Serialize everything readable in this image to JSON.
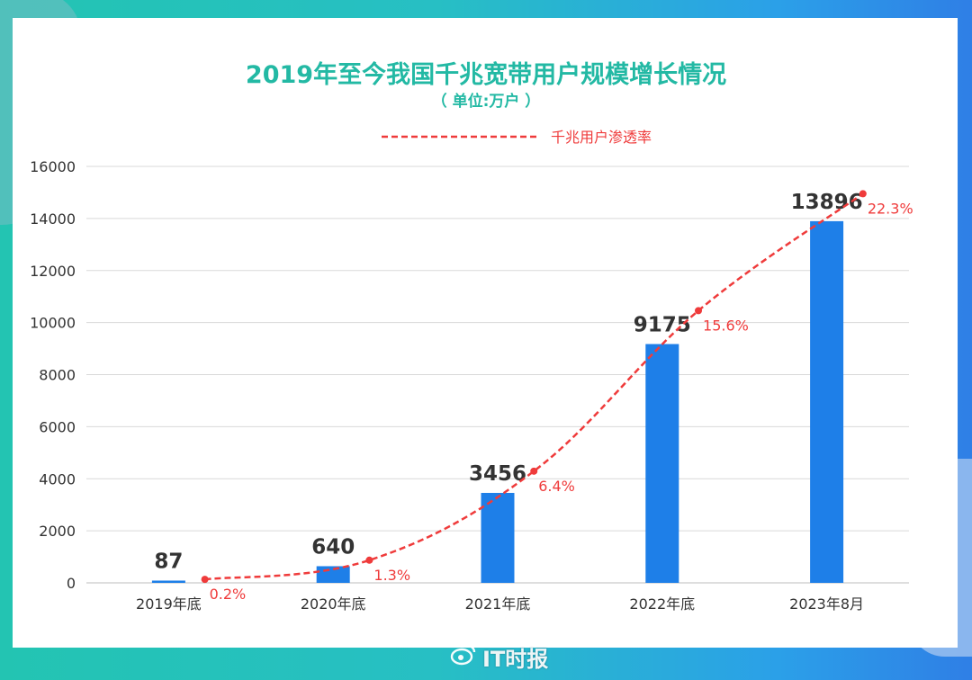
{
  "chart_data": {
    "type": "bar",
    "title": "2019年至今我国千兆宽带用户规模增长情况",
    "subtitle": "（ 单位:万户 ）",
    "categories": [
      "2019年底",
      "2020年底",
      "2021年底",
      "2022年底",
      "2023年8月"
    ],
    "series": [
      {
        "type": "bar",
        "values": [
          87,
          640,
          3456,
          9175,
          13896
        ],
        "value_labels": [
          "87",
          "640",
          "3456",
          "9175",
          "13896"
        ],
        "color": "#1e7fe8"
      },
      {
        "name": "千兆用户渗透率",
        "type": "line",
        "style": "dashed",
        "values": [
          0.2,
          1.3,
          6.4,
          15.6,
          22.3
        ],
        "value_labels": [
          "0.2%",
          "1.3%",
          "6.4%",
          "15.6%",
          "22.3%"
        ],
        "color": "#ef3b3b"
      }
    ],
    "yticks": [
      "0",
      "2000",
      "4000",
      "6000",
      "8000",
      "10000",
      "12000",
      "14000",
      "16000"
    ],
    "ylim": [
      0,
      16000
    ],
    "grid": true,
    "legend": "top"
  },
  "watermark": {
    "text": "IT时报"
  },
  "colors": {
    "accent": "#23b9a4",
    "bar": "#1e7fe8",
    "line": "#ef3b3b"
  }
}
